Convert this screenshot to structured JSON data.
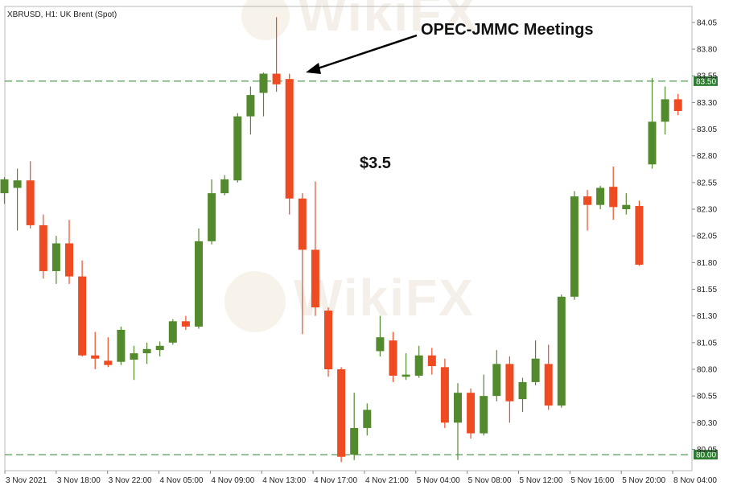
{
  "header": {
    "symbol_label": "XBRUSD, H1:  UK Brent (Spot)"
  },
  "watermark": {
    "text": "WikiFX"
  },
  "annotations": {
    "event_label": "OPEC-JMMC Meetings",
    "range_label": "$3.5"
  },
  "colors": {
    "bull": "#548a2e",
    "bear": "#ef4b23",
    "level_line": "#2f7d32",
    "level_badge_bg": "#2f7d32",
    "level_badge_text": "#ffffff",
    "arrow": "#000000"
  },
  "chart_data": {
    "type": "candlestick",
    "symbol": "XBRUSD",
    "timeframe": "H1",
    "instrument": "UK Brent (Spot)",
    "y_ticks": [
      "84.05",
      "83.80",
      "83.55",
      "83.30",
      "83.05",
      "82.80",
      "82.55",
      "82.30",
      "82.05",
      "81.80",
      "81.55",
      "81.30",
      "81.05",
      "80.80",
      "80.55",
      "80.30",
      "80.05"
    ],
    "x_ticks": [
      "3 Nov 2021",
      "3 Nov 18:00",
      "3 Nov 22:00",
      "4 Nov 05:00",
      "4 Nov 09:00",
      "4 Nov 13:00",
      "4 Nov 17:00",
      "4 Nov 21:00",
      "5 Nov 04:00",
      "5 Nov 08:00",
      "5 Nov 12:00",
      "5 Nov 16:00",
      "5 Nov 20:00",
      "8 Nov 04:00"
    ],
    "ylim": [
      79.85,
      84.2
    ],
    "grid": false,
    "levels": [
      {
        "value": 83.5,
        "label": "83.50"
      },
      {
        "value": 80.0,
        "label": "80.00"
      }
    ],
    "candles": [
      {
        "o": 82.45,
        "h": 82.6,
        "l": 82.35,
        "c": 82.58
      },
      {
        "o": 82.5,
        "h": 82.68,
        "l": 82.1,
        "c": 82.57
      },
      {
        "o": 82.57,
        "h": 82.75,
        "l": 82.12,
        "c": 82.15
      },
      {
        "o": 82.15,
        "h": 82.25,
        "l": 81.65,
        "c": 81.72
      },
      {
        "o": 81.72,
        "h": 82.05,
        "l": 81.6,
        "c": 81.98
      },
      {
        "o": 81.98,
        "h": 82.2,
        "l": 81.6,
        "c": 81.67
      },
      {
        "o": 81.67,
        "h": 81.82,
        "l": 80.92,
        "c": 80.93
      },
      {
        "o": 80.93,
        "h": 81.15,
        "l": 80.8,
        "c": 80.9
      },
      {
        "o": 80.88,
        "h": 81.1,
        "l": 80.82,
        "c": 80.84
      },
      {
        "o": 80.87,
        "h": 81.2,
        "l": 80.84,
        "c": 81.17
      },
      {
        "o": 80.89,
        "h": 81.02,
        "l": 80.7,
        "c": 80.95
      },
      {
        "o": 80.95,
        "h": 81.05,
        "l": 80.85,
        "c": 80.99
      },
      {
        "o": 80.98,
        "h": 81.06,
        "l": 80.92,
        "c": 81.02
      },
      {
        "o": 81.05,
        "h": 81.27,
        "l": 81.03,
        "c": 81.25
      },
      {
        "o": 81.25,
        "h": 81.3,
        "l": 81.17,
        "c": 81.2
      },
      {
        "o": 81.2,
        "h": 82.12,
        "l": 81.18,
        "c": 82.0
      },
      {
        "o": 82.0,
        "h": 82.58,
        "l": 81.97,
        "c": 82.45
      },
      {
        "o": 82.45,
        "h": 82.62,
        "l": 82.43,
        "c": 82.58
      },
      {
        "o": 82.57,
        "h": 83.2,
        "l": 82.55,
        "c": 83.17
      },
      {
        "o": 83.17,
        "h": 83.45,
        "l": 83.0,
        "c": 83.37
      },
      {
        "o": 83.39,
        "h": 83.58,
        "l": 83.17,
        "c": 83.57
      },
      {
        "o": 83.57,
        "h": 84.1,
        "l": 83.4,
        "c": 83.47
      },
      {
        "o": 83.52,
        "h": 83.57,
        "l": 82.25,
        "c": 82.4
      },
      {
        "o": 82.4,
        "h": 82.45,
        "l": 81.13,
        "c": 81.92
      },
      {
        "o": 81.92,
        "h": 82.56,
        "l": 81.3,
        "c": 81.38
      },
      {
        "o": 81.35,
        "h": 81.38,
        "l": 80.73,
        "c": 80.8
      },
      {
        "o": 80.8,
        "h": 80.82,
        "l": 79.93,
        "c": 79.98
      },
      {
        "o": 80.0,
        "h": 80.58,
        "l": 79.95,
        "c": 80.25
      },
      {
        "o": 80.25,
        "h": 80.48,
        "l": 80.18,
        "c": 80.42
      },
      {
        "o": 80.97,
        "h": 81.3,
        "l": 80.92,
        "c": 81.1
      },
      {
        "o": 81.07,
        "h": 81.15,
        "l": 80.68,
        "c": 80.74
      },
      {
        "o": 80.73,
        "h": 80.95,
        "l": 80.7,
        "c": 80.75
      },
      {
        "o": 80.74,
        "h": 81.02,
        "l": 80.72,
        "c": 80.93
      },
      {
        "o": 80.93,
        "h": 81.0,
        "l": 80.75,
        "c": 80.83
      },
      {
        "o": 80.82,
        "h": 80.9,
        "l": 80.25,
        "c": 80.3
      },
      {
        "o": 80.3,
        "h": 80.67,
        "l": 79.95,
        "c": 80.58
      },
      {
        "o": 80.58,
        "h": 80.62,
        "l": 80.15,
        "c": 80.2
      },
      {
        "o": 80.2,
        "h": 80.75,
        "l": 80.18,
        "c": 80.55
      },
      {
        "o": 80.55,
        "h": 80.98,
        "l": 80.5,
        "c": 80.85
      },
      {
        "o": 80.85,
        "h": 80.92,
        "l": 80.3,
        "c": 80.5
      },
      {
        "o": 80.52,
        "h": 80.72,
        "l": 80.4,
        "c": 80.68
      },
      {
        "o": 80.68,
        "h": 81.07,
        "l": 80.65,
        "c": 80.9
      },
      {
        "o": 80.85,
        "h": 81.03,
        "l": 80.42,
        "c": 80.46
      },
      {
        "o": 80.46,
        "h": 81.5,
        "l": 80.44,
        "c": 81.48
      },
      {
        "o": 81.48,
        "h": 82.47,
        "l": 81.45,
        "c": 82.42
      },
      {
        "o": 82.42,
        "h": 82.48,
        "l": 82.1,
        "c": 82.34
      },
      {
        "o": 82.34,
        "h": 82.52,
        "l": 82.3,
        "c": 82.5
      },
      {
        "o": 82.51,
        "h": 82.7,
        "l": 82.2,
        "c": 82.32
      },
      {
        "o": 82.3,
        "h": 82.45,
        "l": 82.25,
        "c": 82.34
      },
      {
        "o": 82.33,
        "h": 82.38,
        "l": 81.77,
        "c": 81.78
      },
      {
        "o": 82.72,
        "h": 83.53,
        "l": 82.68,
        "c": 83.12
      },
      {
        "o": 83.12,
        "h": 83.45,
        "l": 83.0,
        "c": 83.33
      },
      {
        "o": 83.33,
        "h": 83.38,
        "l": 83.18,
        "c": 83.22
      }
    ]
  }
}
